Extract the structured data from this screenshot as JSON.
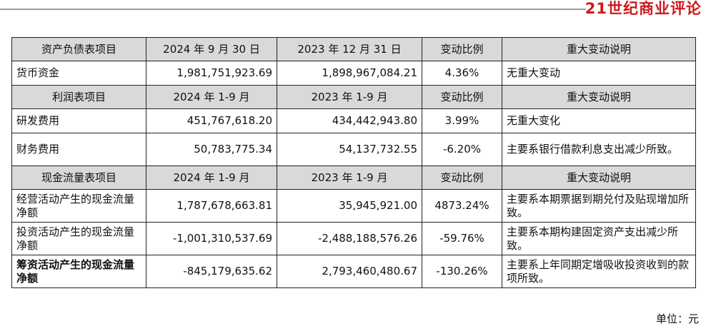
{
  "brand": {
    "logo_text": "21世纪商业评论"
  },
  "sections": [
    {
      "header": [
        "资产负债表项目",
        "2024 年 9 月 30 日",
        "2023 年 12 月 31 日",
        "变动比例",
        "重大变动说明"
      ],
      "rows": [
        {
          "item": "货币资金",
          "current": "1,981,751,923.69",
          "previous": "1,898,967,084.21",
          "change": "4.36%",
          "note": "无重大变动"
        }
      ]
    },
    {
      "header": [
        "利润表项目",
        "2024 年 1-9 月",
        "2023 年 1-9 月",
        "变动比例",
        "重大变动说明"
      ],
      "rows": [
        {
          "item": "研发费用",
          "current": "451,767,618.20",
          "previous": "434,442,943.80",
          "change": "3.99%",
          "note": "无重大变化"
        },
        {
          "item": "财务费用",
          "current": "50,783,775.34",
          "previous": "54,137,732.55",
          "change": "-6.20%",
          "note": "主要系银行借款利息支出减少所致。"
        }
      ]
    },
    {
      "header": [
        "现金流量表项目",
        "2024 年 1-9 月",
        "2023 年 1-9 月",
        "变动比例",
        "重大变动说明"
      ],
      "rows": [
        {
          "item": "经营活动产生的现金流量净额",
          "current": "1,787,678,663.81",
          "previous": "35,945,921.00",
          "change": "4873.24%",
          "note": "主要系本期票据到期兑付及贴现增加所致。"
        },
        {
          "item": "投资活动产生的现金流量净额",
          "current": "-1,001,310,537.69",
          "previous": "-2,488,188,576.26",
          "change": "-59.76%",
          "note": "主要系本期构建固定资产支出减少所致。"
        },
        {
          "item": "筹资活动产生的现金流量净额",
          "current": "-845,179,635.62",
          "previous": "2,793,460,480.67",
          "change": "-130.26%",
          "note": "主要系上年同期定增吸收投资收到的款项所致。"
        }
      ]
    }
  ],
  "unit_note": "单位：元"
}
